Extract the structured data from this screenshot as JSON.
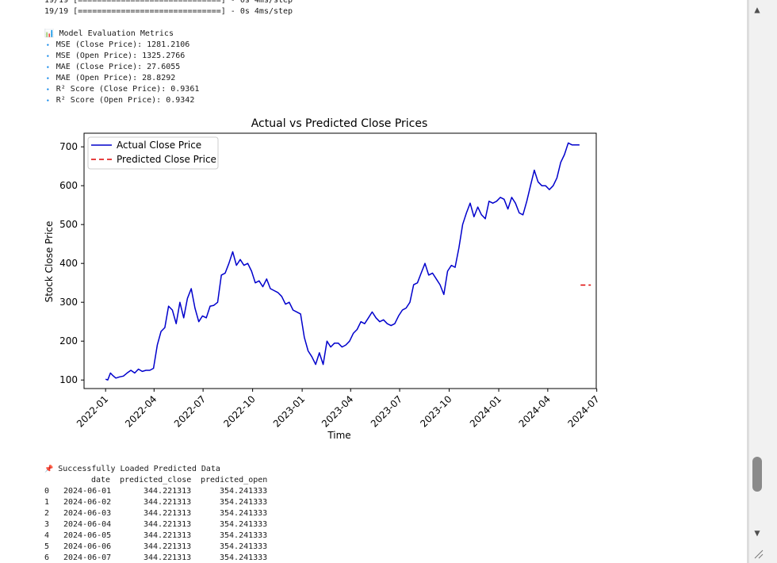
{
  "log": {
    "line0": "19/19 [==============================] - 0s 4ms/step",
    "line1": "19/19 [==============================] - 0s 4ms/step"
  },
  "metrics": {
    "header_icon": "📊",
    "header": "Model Evaluation Metrics",
    "bullet": "🔹",
    "items": [
      "MSE (Close Price): 1281.2106",
      "MSE (Open Price): 1325.2766",
      "MAE (Close Price): 27.6055",
      "MAE (Open Price): 28.8292",
      "R² Score (Close Price): 0.9361",
      "R² Score (Open Price): 0.9342"
    ]
  },
  "chart_data": {
    "type": "line",
    "title": "Actual vs Predicted Close Prices",
    "xlabel": "Time",
    "ylabel": "Stock Close Price",
    "xlim": [
      "2021-11-22",
      "2024-06-30"
    ],
    "ylim": [
      78,
      735
    ],
    "x_ticks": [
      "2022-01",
      "2022-04",
      "2022-07",
      "2022-10",
      "2023-01",
      "2023-04",
      "2023-07",
      "2023-10",
      "2024-01",
      "2024-04",
      "2024-07"
    ],
    "y_ticks": [
      100,
      200,
      300,
      400,
      500,
      600,
      700
    ],
    "grid": false,
    "legend": "top-left",
    "series": [
      {
        "name": "Actual Close Price",
        "color": "#0000cc",
        "style": "solid",
        "x": [
          "2022-01-01",
          "2022-01-05",
          "2022-01-10",
          "2022-01-14",
          "2022-01-20",
          "2022-01-27",
          "2022-02-03",
          "2022-02-10",
          "2022-02-17",
          "2022-02-24",
          "2022-03-03",
          "2022-03-10",
          "2022-03-17",
          "2022-03-24",
          "2022-03-31",
          "2022-04-07",
          "2022-04-14",
          "2022-04-21",
          "2022-04-28",
          "2022-05-05",
          "2022-05-12",
          "2022-05-19",
          "2022-05-26",
          "2022-06-02",
          "2022-06-09",
          "2022-06-16",
          "2022-06-23",
          "2022-06-30",
          "2022-07-07",
          "2022-07-14",
          "2022-07-21",
          "2022-07-28",
          "2022-08-04",
          "2022-08-11",
          "2022-08-18",
          "2022-08-25",
          "2022-09-01",
          "2022-09-08",
          "2022-09-15",
          "2022-09-22",
          "2022-09-29",
          "2022-10-06",
          "2022-10-13",
          "2022-10-20",
          "2022-10-27",
          "2022-11-03",
          "2022-11-10",
          "2022-11-17",
          "2022-11-24",
          "2022-12-01",
          "2022-12-08",
          "2022-12-15",
          "2022-12-22",
          "2022-12-29",
          "2023-01-05",
          "2023-01-12",
          "2023-01-19",
          "2023-01-26",
          "2023-02-02",
          "2023-02-09",
          "2023-02-16",
          "2023-02-23",
          "2023-03-02",
          "2023-03-09",
          "2023-03-16",
          "2023-03-23",
          "2023-03-30",
          "2023-04-06",
          "2023-04-13",
          "2023-04-20",
          "2023-04-27",
          "2023-05-04",
          "2023-05-11",
          "2023-05-18",
          "2023-05-25",
          "2023-06-01",
          "2023-06-08",
          "2023-06-15",
          "2023-06-22",
          "2023-06-29",
          "2023-07-06",
          "2023-07-13",
          "2023-07-20",
          "2023-07-27",
          "2023-08-03",
          "2023-08-10",
          "2023-08-17",
          "2023-08-24",
          "2023-08-31",
          "2023-09-07",
          "2023-09-14",
          "2023-09-21",
          "2023-09-28",
          "2023-10-05",
          "2023-10-12",
          "2023-10-19",
          "2023-10-26",
          "2023-11-02",
          "2023-11-09",
          "2023-11-16",
          "2023-11-23",
          "2023-11-30",
          "2023-12-07",
          "2023-12-14",
          "2023-12-21",
          "2023-12-28",
          "2024-01-04",
          "2024-01-11",
          "2024-01-18",
          "2024-01-25",
          "2024-02-01",
          "2024-02-08",
          "2024-02-15",
          "2024-02-22",
          "2024-02-29",
          "2024-03-07",
          "2024-03-14",
          "2024-03-21",
          "2024-03-28",
          "2024-04-04",
          "2024-04-11",
          "2024-04-18",
          "2024-04-25",
          "2024-05-02",
          "2024-05-09",
          "2024-05-16",
          "2024-05-23",
          "2024-05-30"
        ],
        "y": [
          102,
          100,
          118,
          112,
          105,
          108,
          110,
          118,
          125,
          118,
          128,
          122,
          125,
          125,
          130,
          190,
          225,
          235,
          290,
          280,
          245,
          300,
          260,
          310,
          335,
          285,
          250,
          265,
          260,
          290,
          292,
          300,
          370,
          375,
          400,
          430,
          395,
          410,
          395,
          400,
          380,
          350,
          355,
          340,
          360,
          335,
          330,
          325,
          315,
          295,
          300,
          280,
          275,
          270,
          210,
          175,
          160,
          140,
          170,
          140,
          200,
          185,
          195,
          195,
          185,
          190,
          200,
          220,
          230,
          250,
          245,
          260,
          275,
          260,
          250,
          255,
          245,
          240,
          245,
          265,
          280,
          285,
          300,
          345,
          350,
          375,
          400,
          370,
          375,
          360,
          345,
          320,
          380,
          395,
          390,
          440,
          500,
          530,
          555,
          520,
          545,
          525,
          515,
          560,
          555,
          560,
          570,
          565,
          540,
          570,
          555,
          530,
          525,
          560,
          600,
          640,
          610,
          600,
          600,
          590,
          600,
          620,
          660,
          680,
          710,
          705,
          705,
          705
        ],
        "dates_note": ""
      },
      {
        "name": "Predicted Close Price",
        "color": "#dd0000",
        "style": "dashed",
        "x": [
          "2024-06-01",
          "2024-06-20"
        ],
        "y": [
          344.221313,
          344.221313
        ]
      }
    ]
  },
  "predicted": {
    "pin_icon": "📌",
    "header": "Successfully Loaded Predicted Data",
    "columns": [
      "date",
      "predicted_close",
      "predicted_open"
    ],
    "rows": [
      {
        "idx": "0",
        "date": "2024-06-01",
        "close": "344.221313",
        "open": "354.241333"
      },
      {
        "idx": "1",
        "date": "2024-06-02",
        "close": "344.221313",
        "open": "354.241333"
      },
      {
        "idx": "2",
        "date": "2024-06-03",
        "close": "344.221313",
        "open": "354.241333"
      },
      {
        "idx": "3",
        "date": "2024-06-04",
        "close": "344.221313",
        "open": "354.241333"
      },
      {
        "idx": "4",
        "date": "2024-06-05",
        "close": "344.221313",
        "open": "354.241333"
      },
      {
        "idx": "5",
        "date": "2024-06-06",
        "close": "344.221313",
        "open": "354.241333"
      },
      {
        "idx": "6",
        "date": "2024-06-07",
        "close": "344.221313",
        "open": "354.241333"
      }
    ]
  },
  "scrollbar": {
    "up_icon": "▲",
    "down_icon": "▼"
  }
}
